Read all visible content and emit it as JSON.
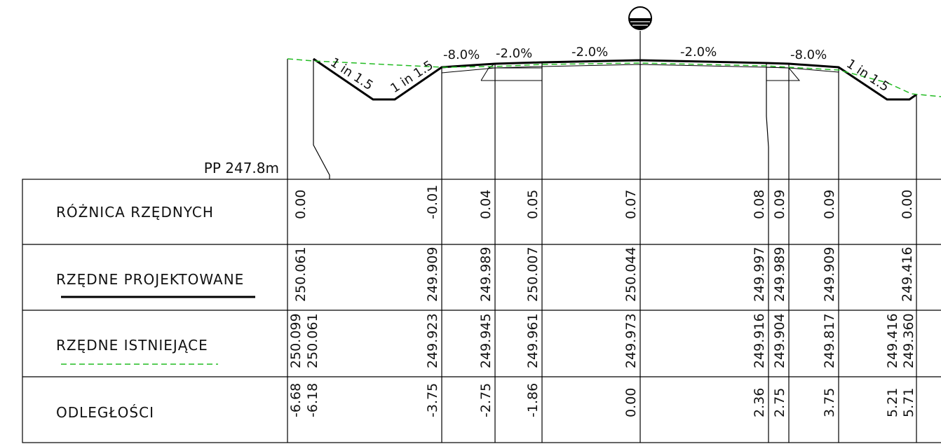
{
  "datum_label": "PP 247.8m",
  "rows": [
    {
      "name": "roznica",
      "label": "RÓŻNICA RZĘDNYCH",
      "legend": ""
    },
    {
      "name": "projektowane",
      "label": "RZĘDNE PROJEKTOWANE",
      "legend": "solid-black"
    },
    {
      "name": "istniejace",
      "label": "RZĘDNE ISTNIEJĄCE",
      "legend": "dashed-green"
    },
    {
      "name": "odleglosci",
      "label": "ODLEGŁOŚCI",
      "legend": ""
    }
  ],
  "slopes": [
    "1 in 1.5",
    "1 in 1.5",
    "-8.0%",
    "-2.0%",
    "-2.0%",
    "-2.0%",
    "-8.0%",
    "1 in 1.5"
  ],
  "columns": [
    {
      "difference": "0.00",
      "design": "250.061",
      "existing": [
        "250.099",
        "250.061"
      ],
      "offset": [
        "-6.68",
        "-6.18"
      ]
    },
    {
      "difference": "-0.01",
      "design": "249.909",
      "existing": [
        "249.923"
      ],
      "offset": [
        "-3.75"
      ]
    },
    {
      "difference": "0.04",
      "design": "249.989",
      "existing": [
        "249.945"
      ],
      "offset": [
        "-2.75"
      ]
    },
    {
      "difference": "0.05",
      "design": "250.007",
      "existing": [
        "249.961"
      ],
      "offset": [
        "-1.86"
      ]
    },
    {
      "difference": "0.07",
      "design": "250.044",
      "existing": [
        "249.973"
      ],
      "offset": [
        "0.00"
      ]
    },
    {
      "difference": "0.08",
      "design": "249.997",
      "existing": [
        "249.916"
      ],
      "offset": [
        "2.36"
      ]
    },
    {
      "difference": "0.09",
      "design": "249.989",
      "existing": [
        "249.904"
      ],
      "offset": [
        "2.75"
      ]
    },
    {
      "difference": "0.09",
      "design": "249.909",
      "existing": [
        "249.817"
      ],
      "offset": [
        "3.75"
      ]
    },
    {
      "difference": "0.00",
      "design": "249.416",
      "existing": [
        "249.416",
        "249.360"
      ],
      "offset": [
        "5.21",
        "5.71"
      ]
    }
  ],
  "colors": {
    "line": "#000000",
    "existing_ground": "#22bb22",
    "text": "#111111"
  },
  "icons": {
    "centerline": "water-level-symbol"
  }
}
